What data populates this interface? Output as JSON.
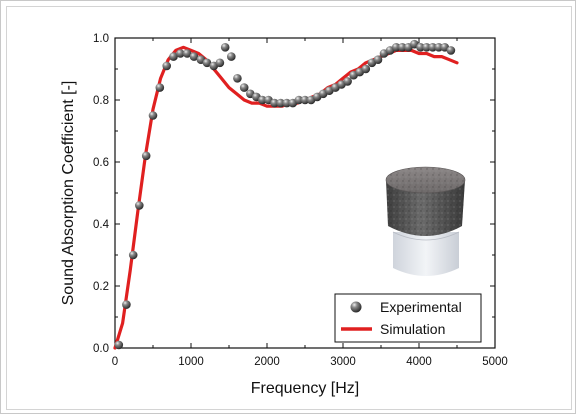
{
  "chart_data": {
    "type": "scatter",
    "xlabel": "Frequency [Hz]",
    "ylabel": "Sound Absorption Coefficient  [-]",
    "xlim": [
      0,
      5000
    ],
    "ylim": [
      0,
      1.0
    ],
    "xticks": [
      "0",
      "1000",
      "2000",
      "3000",
      "4000",
      "5000"
    ],
    "yticks": [
      "0.0",
      "0.2",
      "0.4",
      "0.6",
      "0.8",
      "1.0"
    ],
    "legend_position": "bottom-right",
    "series": [
      {
        "name": "Experimental",
        "kind": "scatter",
        "color": "#555555",
        "x": [
          50,
          150,
          240,
          320,
          410,
          500,
          590,
          680,
          770,
          860,
          950,
          1040,
          1130,
          1210,
          1300,
          1380,
          1450,
          1530,
          1610,
          1700,
          1780,
          1860,
          1940,
          2020,
          2100,
          2180,
          2260,
          2340,
          2420,
          2500,
          2580,
          2660,
          2740,
          2820,
          2900,
          2980,
          3060,
          3140,
          3220,
          3300,
          3380,
          3460,
          3540,
          3620,
          3700,
          3780,
          3860,
          3940,
          4020,
          4100,
          4180,
          4260,
          4340,
          4420
        ],
        "y": [
          0.01,
          0.14,
          0.3,
          0.46,
          0.62,
          0.75,
          0.84,
          0.91,
          0.94,
          0.95,
          0.95,
          0.94,
          0.93,
          0.92,
          0.91,
          0.92,
          0.97,
          0.94,
          0.87,
          0.84,
          0.82,
          0.81,
          0.8,
          0.8,
          0.79,
          0.79,
          0.79,
          0.79,
          0.8,
          0.8,
          0.8,
          0.81,
          0.82,
          0.83,
          0.84,
          0.85,
          0.86,
          0.88,
          0.89,
          0.9,
          0.92,
          0.93,
          0.95,
          0.96,
          0.97,
          0.97,
          0.97,
          0.98,
          0.97,
          0.97,
          0.97,
          0.97,
          0.97,
          0.96
        ]
      },
      {
        "name": "Simulation",
        "kind": "line",
        "color": "#e02020",
        "x": [
          0,
          100,
          200,
          300,
          400,
          500,
          600,
          700,
          800,
          900,
          1000,
          1100,
          1200,
          1300,
          1400,
          1500,
          1600,
          1700,
          1800,
          1900,
          2000,
          2100,
          2200,
          2300,
          2400,
          2500,
          2600,
          2700,
          2800,
          2900,
          3000,
          3100,
          3200,
          3300,
          3400,
          3500,
          3600,
          3700,
          3800,
          3900,
          4000,
          4100,
          4200,
          4300,
          4400,
          4500
        ],
        "y": [
          0.0,
          0.08,
          0.25,
          0.44,
          0.62,
          0.77,
          0.87,
          0.93,
          0.96,
          0.97,
          0.96,
          0.95,
          0.93,
          0.9,
          0.87,
          0.84,
          0.82,
          0.8,
          0.79,
          0.79,
          0.78,
          0.78,
          0.78,
          0.79,
          0.79,
          0.8,
          0.81,
          0.82,
          0.84,
          0.85,
          0.87,
          0.89,
          0.9,
          0.92,
          0.93,
          0.94,
          0.95,
          0.96,
          0.96,
          0.96,
          0.95,
          0.95,
          0.94,
          0.94,
          0.93,
          0.92
        ]
      }
    ]
  },
  "legend": {
    "experimental_label": "Experimental",
    "simulation_label": "Simulation"
  },
  "inset_photo": {
    "icon": "foam-sample-photo",
    "top_color": "#6a6a6a",
    "bottom_color": "#e6e9ee"
  }
}
